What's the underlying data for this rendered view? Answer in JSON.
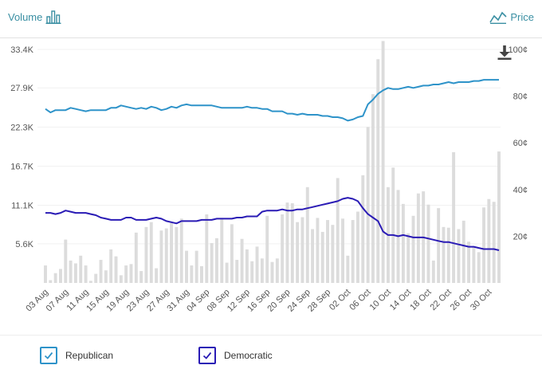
{
  "header": {
    "volume_label": "Volume",
    "price_label": "Price"
  },
  "legend": [
    {
      "label": "Republican",
      "color": "#2e93c9"
    },
    {
      "label": "Democratic",
      "color": "#2a1bb5"
    }
  ],
  "colors": {
    "volume_bar": "#dcdcdc",
    "republican": "#2e93c9",
    "democratic": "#2a1bb5",
    "accent": "#3a8fa3"
  },
  "chart_data": {
    "type": "bar+line",
    "left_axis": {
      "label": "",
      "ticks": [
        "5.6K",
        "11.1K",
        "16.7K",
        "22.3K",
        "27.9K",
        "33.4K"
      ],
      "values": [
        5600,
        11100,
        16700,
        22300,
        27900,
        33400
      ],
      "ylim": [
        0,
        33400
      ]
    },
    "right_axis": {
      "label": "",
      "ticks": [
        "20¢",
        "40¢",
        "60¢",
        "80¢",
        "100¢"
      ],
      "values": [
        20,
        40,
        60,
        80,
        100
      ],
      "ylim": [
        0,
        100
      ]
    },
    "x_tick_labels": [
      "03 Aug",
      "07 Aug",
      "11 Aug",
      "15 Aug",
      "19 Aug",
      "23 Aug",
      "27 Aug",
      "31 Aug",
      "04 Sep",
      "08 Sep",
      "12 Sep",
      "16 Sep",
      "20 Sep",
      "24 Sep",
      "28 Sep",
      "02 Oct",
      "06 Oct",
      "10 Oct",
      "14 Oct",
      "18 Oct",
      "22 Oct",
      "26 Oct",
      "30 Oct"
    ],
    "x_start": "2020-08-03",
    "x_end": "2020-11-01",
    "volume": [
      2500,
      400,
      1400,
      2000,
      6200,
      3200,
      2800,
      3900,
      2500,
      300,
      1300,
      3300,
      1800,
      4800,
      3800,
      1100,
      2500,
      2700,
      7200,
      1700,
      8000,
      8700,
      2100,
      7500,
      7800,
      8600,
      8000,
      9200,
      4600,
      2500,
      4600,
      2400,
      9800,
      5700,
      6400,
      9300,
      2900,
      8400,
      3300,
      6300,
      4800,
      3100,
      5200,
      3500,
      9600,
      3000,
      3500,
      9800,
      11500,
      11400,
      8700,
      9400,
      13700,
      7700,
      9300,
      7300,
      9000,
      8300,
      15000,
      9200,
      3900,
      9000,
      10200,
      15400,
      22300,
      27000,
      32000,
      34600,
      13700,
      16500,
      13300,
      11300,
      7100,
      9600,
      12800,
      13100,
      11200,
      3200,
      10700,
      8000,
      7900,
      18700,
      7700,
      8900,
      5900,
      5100,
      4400,
      10800,
      12000,
      11600,
      18800
    ],
    "series": [
      {
        "name": "Republican",
        "values": [
          74.5,
          73,
          74,
          74,
          74,
          75,
          74.5,
          74,
          73.5,
          74,
          74,
          74,
          74,
          75,
          75,
          76,
          75.5,
          75,
          74.5,
          75,
          74.5,
          75.5,
          75,
          74,
          74.5,
          75.5,
          75,
          76,
          76.5,
          76,
          76,
          76,
          76,
          76,
          75.5,
          75,
          75,
          75,
          75,
          75,
          75.5,
          75,
          75,
          74.5,
          74.5,
          73.5,
          73.5,
          73.5,
          72.5,
          72.5,
          72,
          72.5,
          72,
          72,
          72,
          71.5,
          71.5,
          71,
          71,
          70.5,
          69.5,
          70,
          71,
          71.5,
          76.5,
          78.5,
          81,
          82.5,
          83.5,
          83,
          83,
          83.5,
          84,
          83.5,
          84,
          84.5,
          84.5,
          85,
          85,
          85.5,
          86,
          85.5,
          86,
          86,
          86,
          86.5,
          86.5,
          87,
          87,
          87,
          87
        ]
      },
      {
        "name": "Democratic",
        "values": [
          30,
          30,
          29.5,
          30,
          31,
          30.5,
          30,
          30,
          30,
          29.5,
          29,
          28,
          27.5,
          27,
          27,
          27,
          28,
          28,
          27,
          27,
          27,
          27.5,
          28,
          27.5,
          26.5,
          26,
          25.5,
          26.5,
          26.5,
          26.5,
          26.5,
          27,
          27,
          27,
          27.5,
          27.5,
          27.5,
          27.5,
          28,
          28,
          28.5,
          28.5,
          28.5,
          30.5,
          31,
          31,
          31,
          31.5,
          31,
          31,
          31.5,
          31.5,
          32,
          32.5,
          33,
          33.5,
          34,
          34.5,
          35,
          36,
          36.5,
          36,
          35,
          32,
          29.5,
          28,
          26.5,
          22,
          20.5,
          20.5,
          20,
          20.5,
          20,
          19.5,
          19.5,
          19.5,
          19,
          18.5,
          18,
          17.5,
          17.5,
          17,
          16.5,
          16,
          15.5,
          15.5,
          15,
          14.5,
          14.5,
          14.5,
          14
        ]
      }
    ],
    "legend_position": "bottom-left",
    "grid": "horizontal"
  }
}
